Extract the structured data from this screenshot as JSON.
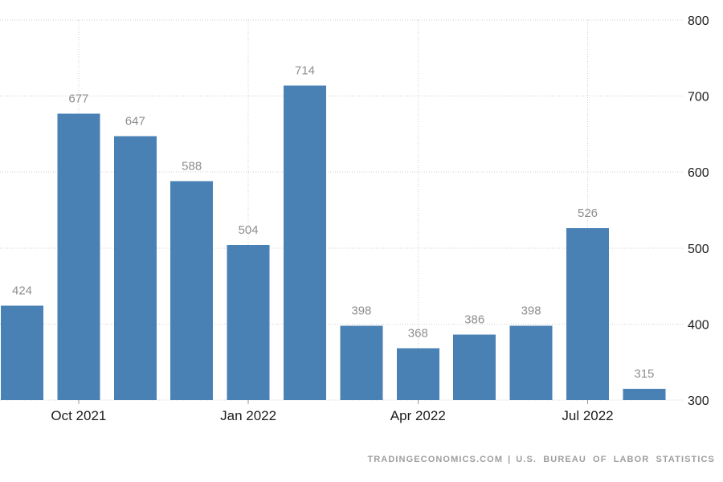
{
  "chart_data": {
    "type": "bar",
    "categories": [
      "Sep 2021",
      "Oct 2021",
      "Nov 2021",
      "Dec 2021",
      "Jan 2022",
      "Feb 2022",
      "Mar 2022",
      "Apr 2022",
      "May 2022",
      "Jun 2022",
      "Jul 2022",
      "Aug 2022"
    ],
    "values": [
      424,
      677,
      647,
      588,
      504,
      714,
      398,
      368,
      386,
      398,
      526,
      315
    ],
    "data_labels": [
      "424",
      "677",
      "647",
      "588",
      "504",
      "714",
      "398",
      "368",
      "386",
      "398",
      "526",
      "315"
    ],
    "x_ticks": [
      {
        "label": "Oct 2021",
        "index": 1
      },
      {
        "label": "Jan 2022",
        "index": 4
      },
      {
        "label": "Apr 2022",
        "index": 7
      },
      {
        "label": "Jul 2022",
        "index": 10
      }
    ],
    "y_ticks": [
      300,
      400,
      500,
      600,
      700,
      800
    ],
    "ylim": [
      300,
      800
    ],
    "y_axis_side": "right",
    "grid": "dotted",
    "legend": "none",
    "title": "",
    "xlabel": "",
    "ylabel": "",
    "bar_color": "#4a81b4",
    "value_label_color": "#8e8e8e",
    "axis_label_color": "#1c1c1c",
    "gridline_color": "#cfcfcf"
  },
  "footer": {
    "left": "TRADINGECONOMICS.COM",
    "separator": "|",
    "right": "U.S. BUREAU OF LABOR STATISTICS"
  }
}
